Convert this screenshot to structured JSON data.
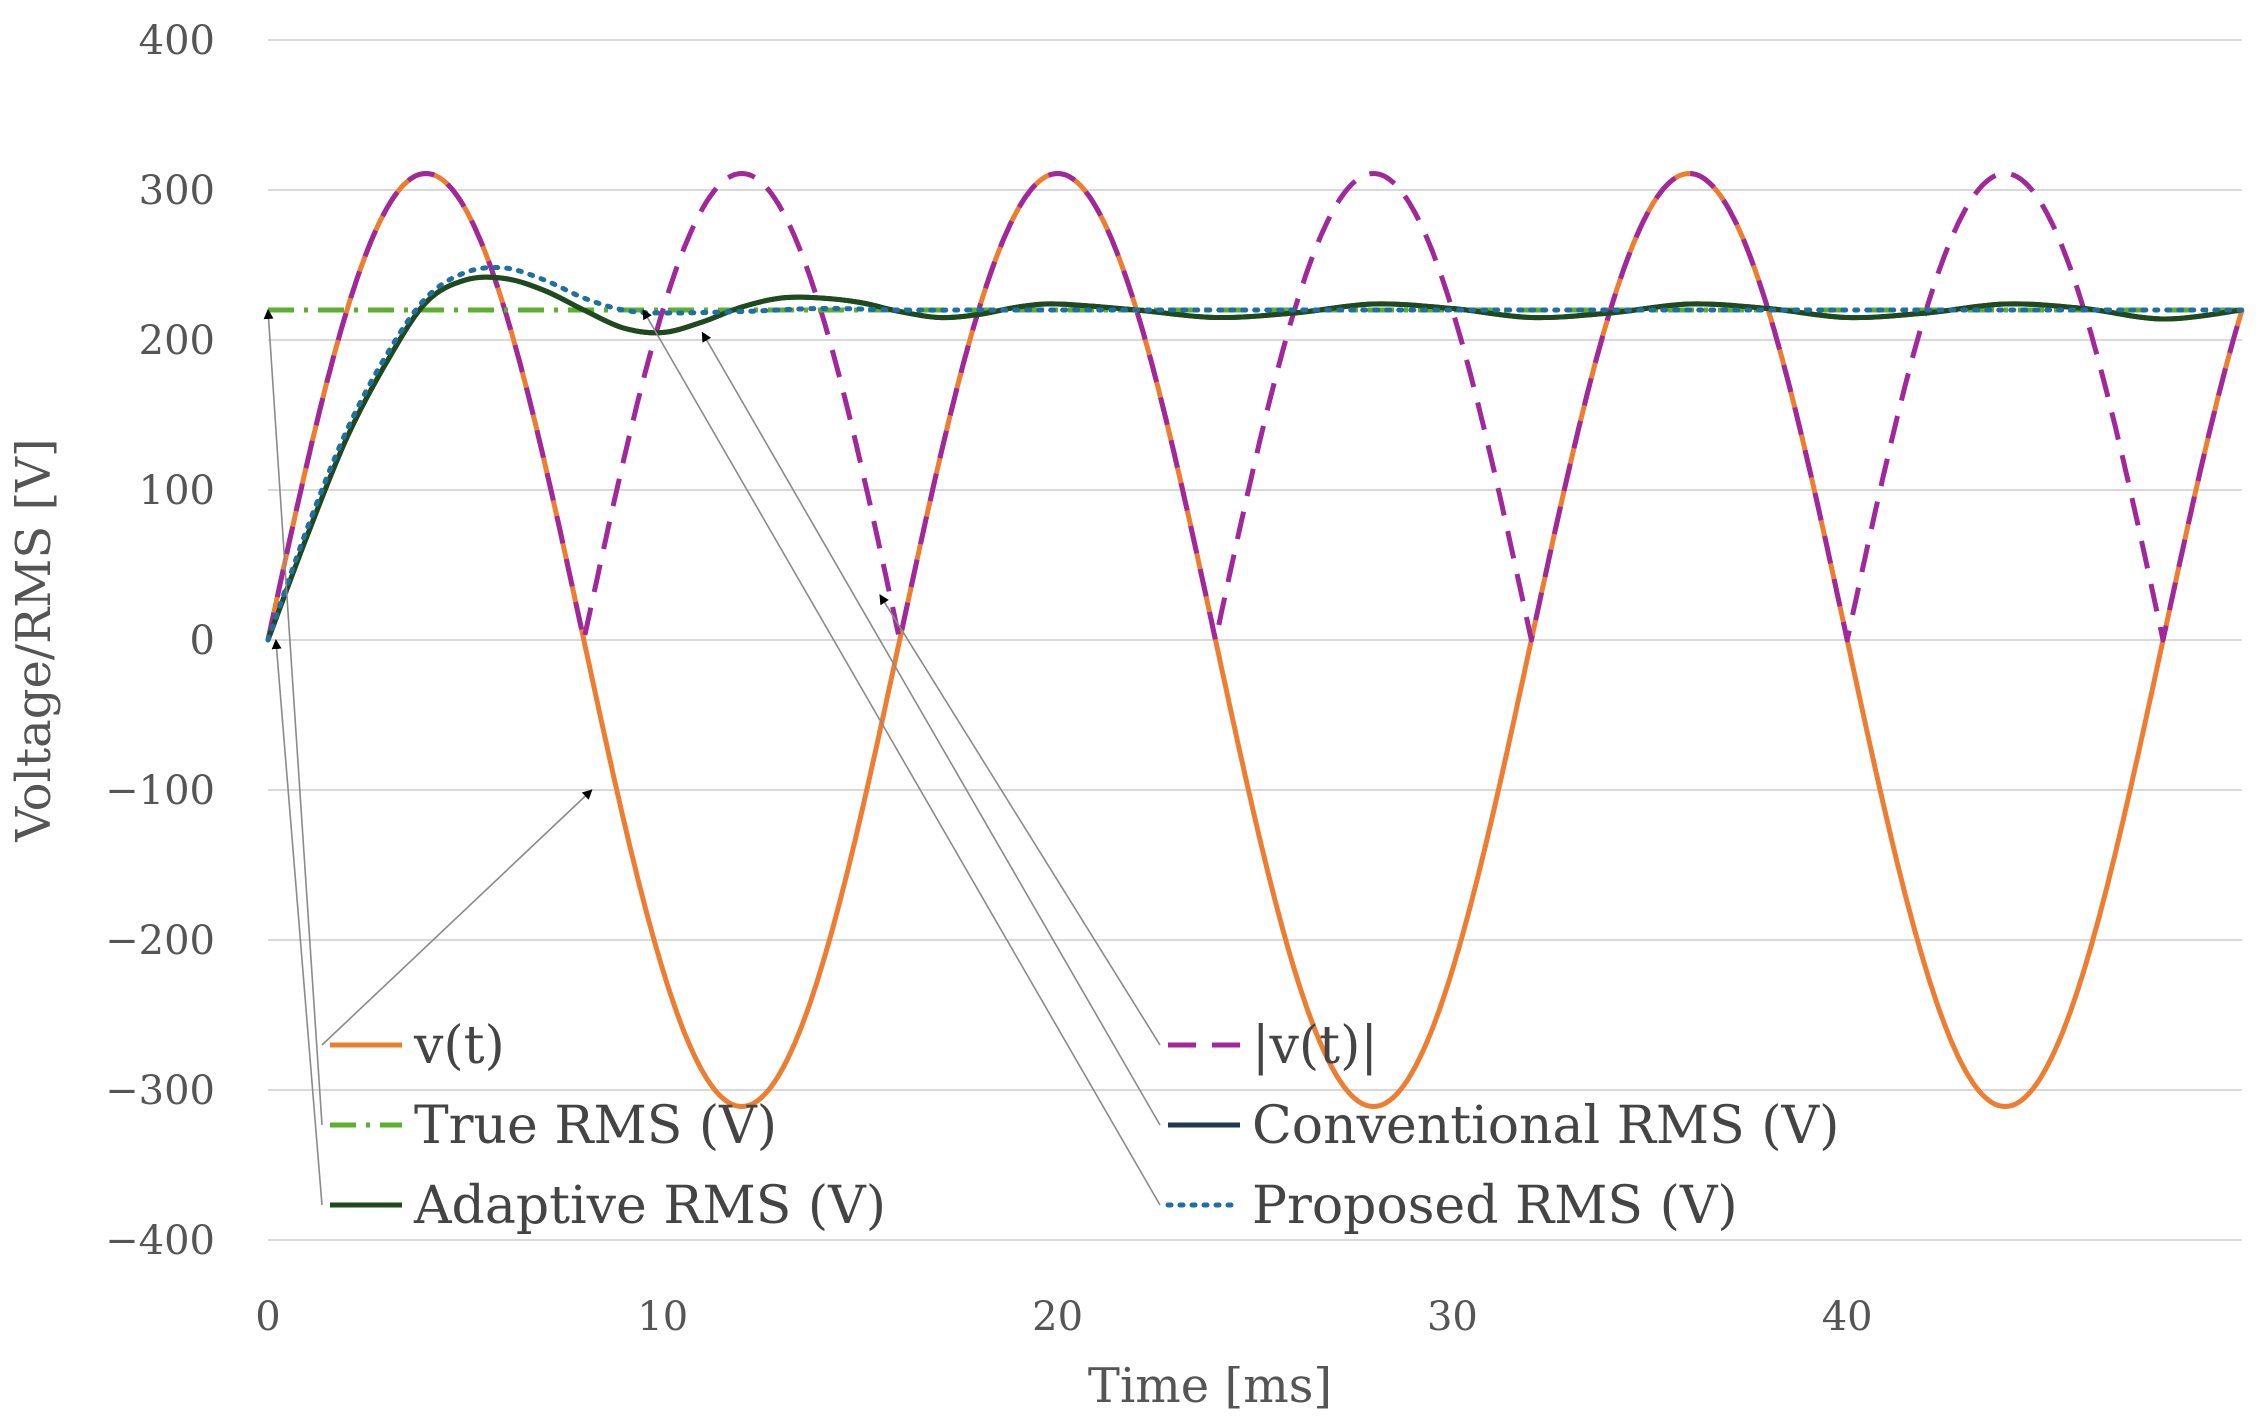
{
  "chart_data": {
    "type": "line",
    "xlabel": "Time [ms]",
    "ylabel": "Voltage/RMS [V]",
    "xlim": [
      0,
      50
    ],
    "ylim": [
      -400,
      400
    ],
    "x_ticks": [
      0,
      10,
      20,
      30,
      40
    ],
    "y_ticks": [
      400,
      300,
      200,
      100,
      0,
      -100,
      -200,
      -300,
      -400
    ],
    "x_tick_labels": [
      "0",
      "10",
      "20",
      "30",
      "40"
    ],
    "y_tick_labels": [
      "400",
      "300",
      "200",
      "100",
      "0",
      "−100",
      "−200",
      "−300",
      "−400"
    ],
    "grid": "horizontal",
    "legend_position": "bottom",
    "signal": {
      "amplitude": 311,
      "frequency_hz": 62.5,
      "true_rms": 220
    },
    "series": [
      {
        "name": "v(t)",
        "color": "#ED7D31",
        "style": "solid",
        "x": [
          0,
          2,
          4,
          6,
          8,
          10,
          12,
          14,
          16,
          18,
          20,
          22,
          24,
          26,
          28,
          30,
          32,
          34,
          36,
          38,
          40,
          42,
          44,
          46,
          48,
          50
        ],
        "values": [
          0,
          220,
          311,
          220,
          0,
          -220,
          -311,
          -220,
          0,
          220,
          311,
          220,
          0,
          -220,
          -311,
          -220,
          0,
          220,
          311,
          220,
          0,
          -220,
          -311,
          -220,
          0,
          220
        ]
      },
      {
        "name": "|v(t)|",
        "color": "#A0289B",
        "style": "dashed",
        "x": [
          0,
          2,
          4,
          6,
          8,
          10,
          12,
          14,
          16,
          18,
          20,
          22,
          24,
          26,
          28,
          30,
          32,
          34,
          36,
          38,
          40,
          42,
          44,
          46,
          48,
          50
        ],
        "values": [
          0,
          220,
          311,
          220,
          0,
          220,
          311,
          220,
          0,
          220,
          311,
          220,
          0,
          220,
          311,
          220,
          0,
          220,
          311,
          220,
          0,
          220,
          311,
          220,
          0,
          220
        ]
      },
      {
        "name": "True RMS (V)",
        "color": "#5BB030",
        "style": "dashdot",
        "x": [
          0,
          50
        ],
        "values": [
          220,
          220
        ]
      },
      {
        "name": "Conventional RMS (V)",
        "color": "#1F3A4D",
        "style": "solid",
        "x": [
          0,
          1,
          2,
          3,
          4,
          5,
          6,
          7,
          8,
          9,
          10,
          11,
          12,
          13,
          14,
          15,
          16,
          17,
          18,
          19,
          20,
          22,
          24,
          26,
          28,
          30,
          32,
          34,
          36,
          38,
          40,
          42,
          44,
          46,
          48,
          50
        ],
        "values": [
          0,
          70,
          135,
          185,
          225,
          240,
          241,
          233,
          220,
          208,
          205,
          212,
          222,
          228,
          228,
          225,
          219,
          215,
          217,
          222,
          224,
          220,
          215,
          218,
          224,
          221,
          215,
          218,
          224,
          221,
          215,
          218,
          224,
          221,
          214,
          220
        ]
      },
      {
        "name": "Adaptive RMS (V)",
        "color": "#1E4A1E",
        "style": "solid",
        "x": [
          0,
          1,
          2,
          3,
          4,
          5,
          6,
          7,
          8,
          9,
          10,
          11,
          12,
          13,
          14,
          15,
          16,
          17,
          18,
          19,
          20,
          22,
          24,
          26,
          28,
          30,
          32,
          34,
          36,
          38,
          40,
          42,
          44,
          46,
          48,
          50
        ],
        "values": [
          0,
          70,
          135,
          185,
          225,
          240,
          241,
          233,
          220,
          208,
          205,
          212,
          222,
          228,
          228,
          225,
          219,
          215,
          217,
          222,
          224,
          220,
          215,
          218,
          224,
          221,
          215,
          218,
          224,
          221,
          215,
          218,
          224,
          221,
          214,
          220
        ]
      },
      {
        "name": "Proposed RMS (V)",
        "color": "#1F6FA0",
        "style": "dotted",
        "x": [
          0,
          1,
          2,
          3,
          4,
          5,
          6,
          7,
          8,
          9,
          10,
          12,
          14,
          16,
          18,
          20,
          25,
          30,
          35,
          40,
          45,
          50
        ],
        "values": [
          0,
          75,
          140,
          190,
          228,
          245,
          248,
          240,
          228,
          220,
          218,
          219,
          221,
          220,
          220,
          220,
          220,
          220,
          220,
          220,
          220,
          220
        ]
      }
    ],
    "annotations": [
      {
        "label": "v(t)",
        "target": [
          8.2,
          -100
        ]
      },
      {
        "label": "True RMS (V)",
        "target": [
          0,
          220
        ]
      },
      {
        "label": "Adaptive RMS (V)",
        "target": [
          0.2,
          0
        ]
      },
      {
        "label": "|v(t)|",
        "target": [
          15.5,
          30
        ]
      },
      {
        "label": "Conventional RMS (V)",
        "target": [
          11,
          205
        ]
      },
      {
        "label": "Proposed RMS (V)",
        "target": [
          9.5,
          220
        ]
      }
    ]
  }
}
